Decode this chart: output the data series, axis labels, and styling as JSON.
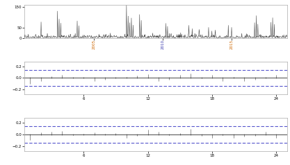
{
  "top_plot": {
    "ylim": [
      0,
      160
    ],
    "yticks": [
      0,
      50,
      150
    ],
    "xtick_years": [
      2005,
      2010,
      2015
    ],
    "xtick_colors": [
      "#cc6600",
      "#3333aa",
      "#cc6600"
    ],
    "line_color": "#333333",
    "n_points": 800,
    "seed": 42,
    "start_year": 2000,
    "end_year": 2019
  },
  "acf_plot": {
    "ylim": [
      -0.28,
      0.28
    ],
    "yticks": [
      -0.2,
      0.0,
      0.2
    ],
    "xlim": [
      0.5,
      25
    ],
    "xticks": [
      6,
      12,
      18,
      24
    ],
    "ci": 0.14,
    "ci_color": "#5555cc",
    "bar_color": "#666666",
    "n_lags": 24
  },
  "pacf_plot": {
    "ylim": [
      -0.28,
      0.28
    ],
    "yticks": [
      -0.2,
      0.0,
      0.2
    ],
    "xlim": [
      0.5,
      25
    ],
    "xticks": [
      6,
      12,
      18,
      24
    ],
    "ci": 0.14,
    "ci_color": "#5555cc",
    "bar_color": "#666666",
    "n_lags": 24
  },
  "bg_color": "#ffffff",
  "panel_bg": "#ffffff"
}
